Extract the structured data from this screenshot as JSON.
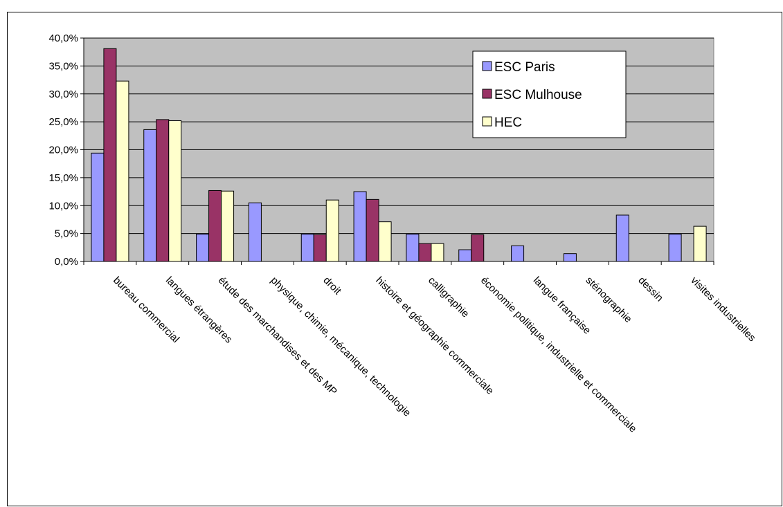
{
  "chart_data": {
    "type": "bar",
    "categories": [
      "bureau commercial",
      "langues étrangères",
      "étude des marchandises et des MP",
      "physique, chimie, mécanique, technologie",
      "droit",
      "histoire et géographie commerciale",
      "calligraphie",
      "économie politique, industrielle et commerciale",
      "langue française",
      "sténographie",
      "dessin",
      "visites industrielles"
    ],
    "series": [
      {
        "name": "ESC Paris",
        "color": "#9999ff",
        "values": [
          19.4,
          23.6,
          4.9,
          10.5,
          4.9,
          12.5,
          4.9,
          2.1,
          2.8,
          1.4,
          8.3,
          4.9
        ]
      },
      {
        "name": "ESC Mulhouse",
        "color": "#993366",
        "values": [
          38.1,
          25.4,
          12.7,
          0,
          4.8,
          11.1,
          3.2,
          4.8,
          0,
          0,
          0,
          0
        ]
      },
      {
        "name": "HEC",
        "color": "#ffffcc",
        "values": [
          32.3,
          25.2,
          12.6,
          0,
          11.0,
          7.1,
          3.2,
          0,
          0,
          0,
          0,
          6.3
        ]
      }
    ],
    "yticks": [
      "0,0%",
      "5,0%",
      "10,0%",
      "15,0%",
      "20,0%",
      "25,0%",
      "30,0%",
      "35,0%",
      "40,0%"
    ],
    "ylim": [
      0,
      40
    ],
    "plot_background": "#c0c0c0",
    "grid": true,
    "legend_position": "top-right"
  }
}
